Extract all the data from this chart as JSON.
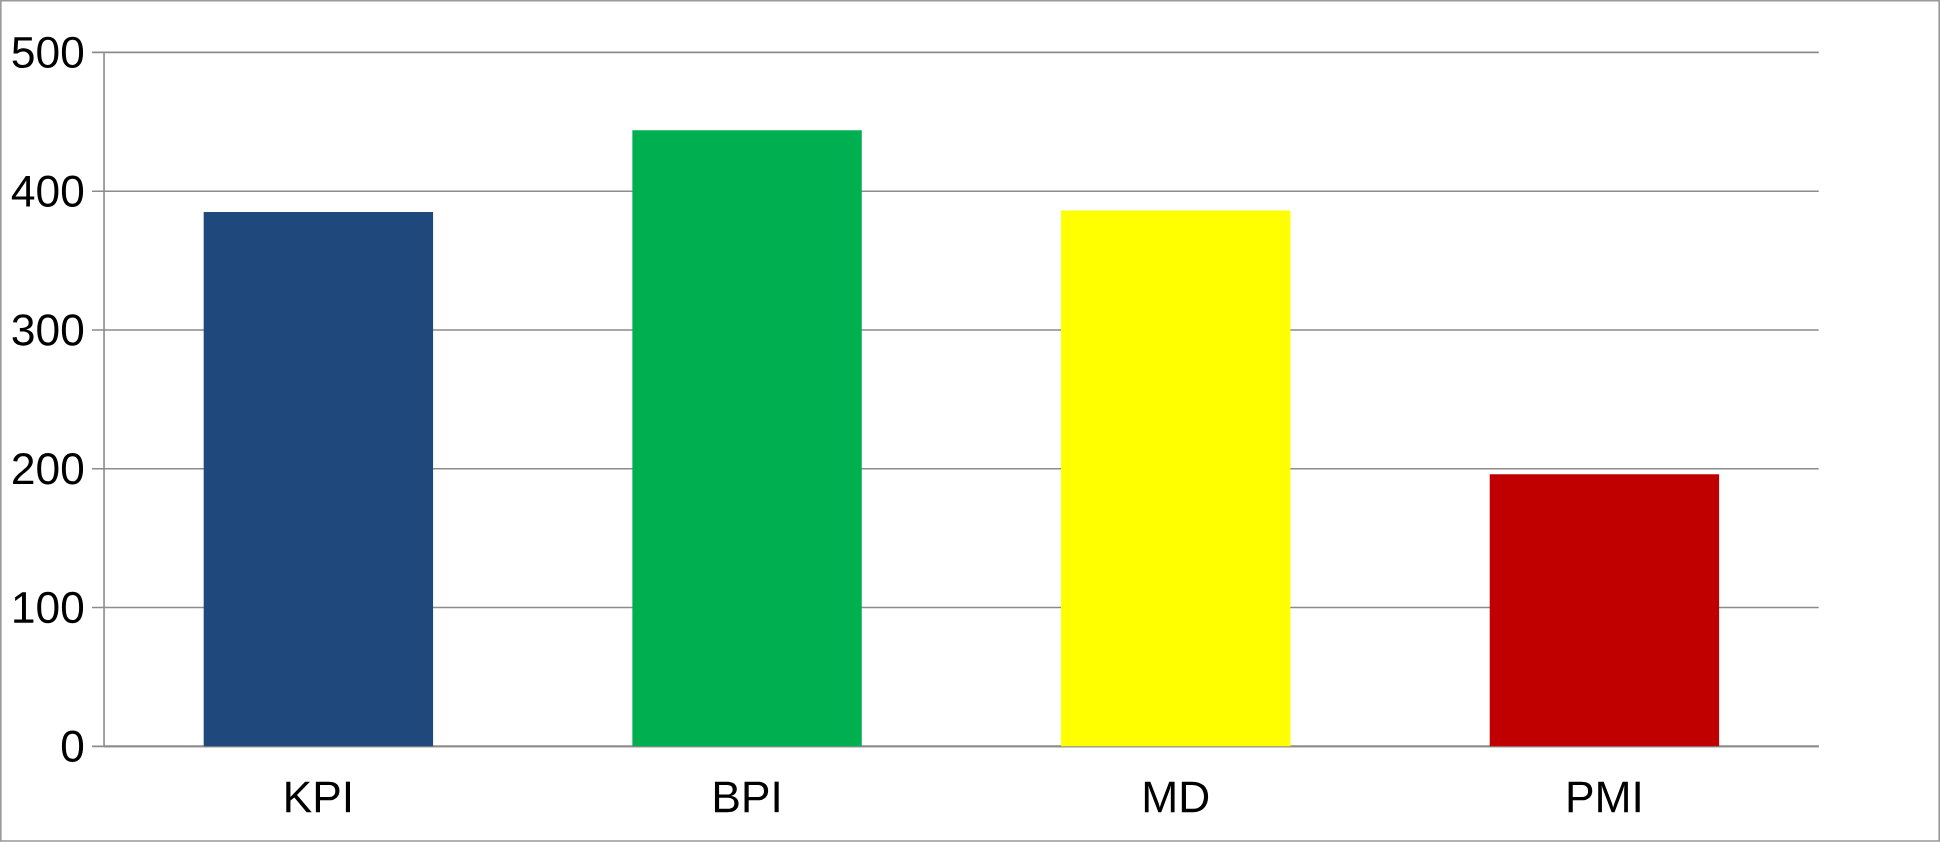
{
  "chart_data": {
    "type": "bar",
    "categories": [
      "KPI",
      "BPI",
      "MD",
      "PMI"
    ],
    "values": [
      385,
      444,
      386,
      196
    ],
    "colors": [
      "#1f497d",
      "#00b050",
      "#ffff00",
      "#c00000"
    ],
    "ylim": [
      0,
      500
    ],
    "yticks": [
      0,
      100,
      200,
      300,
      400,
      500
    ],
    "grid": "y"
  }
}
